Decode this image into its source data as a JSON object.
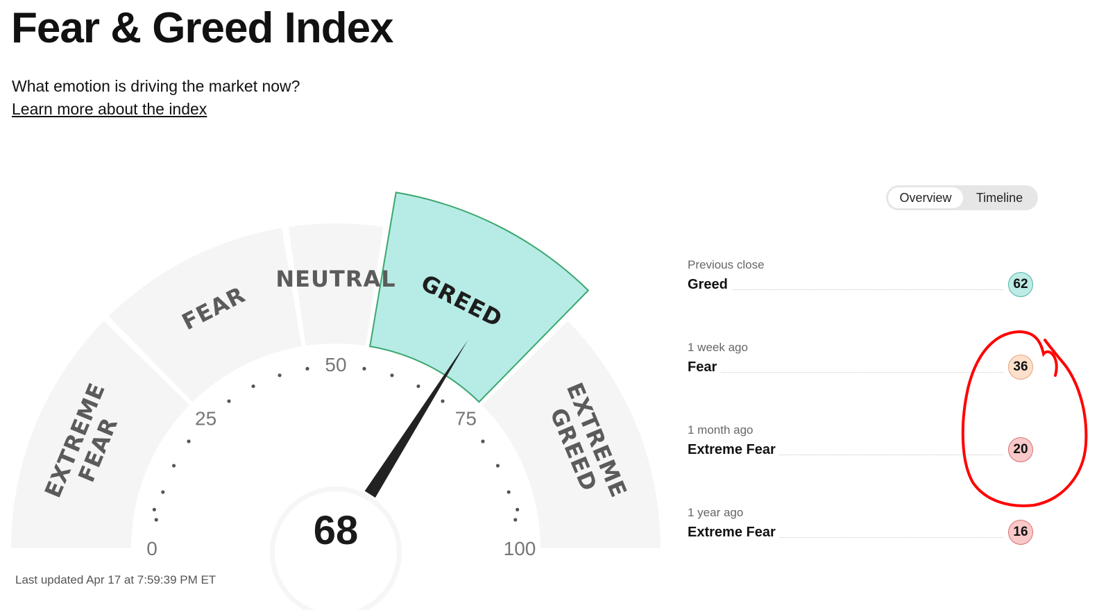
{
  "header": {
    "title": "Fear & Greed Index",
    "subtitle": "What emotion is driving the market now?",
    "learn_more": "Learn more about the index"
  },
  "toggle": {
    "overview": "Overview",
    "timeline": "Timeline",
    "selected": "Overview"
  },
  "gauge": {
    "value": 68,
    "value_text": "68",
    "active_zone": "GREED",
    "zones": [
      {
        "lines": [
          "EXTREME",
          "FEAR"
        ],
        "from": 0,
        "to": 25
      },
      {
        "lines": [
          "FEAR"
        ],
        "from": 25,
        "to": 45
      },
      {
        "lines": [
          "NEUTRAL"
        ],
        "from": 45,
        "to": 55
      },
      {
        "lines": [
          "GREED"
        ],
        "from": 55,
        "to": 75
      },
      {
        "lines": [
          "EXTREME",
          "GREED"
        ],
        "from": 75,
        "to": 100
      }
    ],
    "ticks": [
      {
        "value": 0,
        "text": "0"
      },
      {
        "value": 25,
        "text": "25"
      },
      {
        "value": 50,
        "text": "50"
      },
      {
        "value": 75,
        "text": "75"
      },
      {
        "value": 100,
        "text": "100"
      }
    ],
    "colors": {
      "zone": "#f5f5f5",
      "active_fill": "#b7ebe6",
      "active_stroke": "#3aa76d",
      "needle": "#222222"
    }
  },
  "history": [
    {
      "label": "Previous close",
      "rating": "Greed",
      "value": "62",
      "badge_bg": "#bdebe6",
      "badge_border": "#4fb6a6"
    },
    {
      "label": "1 week ago",
      "rating": "Fear",
      "value": "36",
      "badge_bg": "#fde0cc",
      "badge_border": "#e7a27a"
    },
    {
      "label": "1 month ago",
      "rating": "Extreme Fear",
      "value": "20",
      "badge_bg": "#f9c8c8",
      "badge_border": "#d86f6f"
    },
    {
      "label": "1 year ago",
      "rating": "Extreme Fear",
      "value": "16",
      "badge_bg": "#f9c8c8",
      "badge_border": "#d86f6f"
    }
  ],
  "footer": {
    "last_updated": "Last updated Apr 17 at 7:59:39 PM ET"
  },
  "annotation": {
    "color": "#ff0000",
    "description": "hand-drawn circle around 36 and 20"
  }
}
